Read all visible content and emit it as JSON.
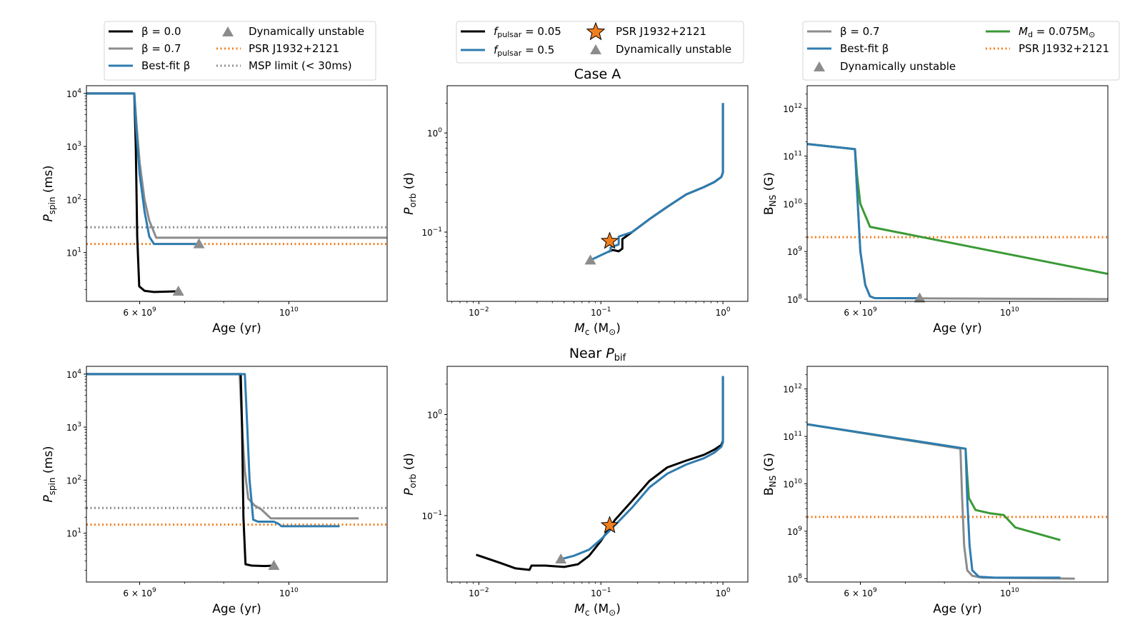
{
  "colors": {
    "black": "#000000",
    "gray": "#8c8c8c",
    "blue": "#2f7cb0",
    "orange": "#f07d1e",
    "green": "#3a9a36"
  },
  "legends": {
    "left": {
      "beta0": "β = 0.0",
      "beta07": "β = 0.7",
      "bestfit": "Best-fit β",
      "dyn": "Dynamically unstable",
      "psr": "PSR J1932+2121",
      "msp": "MSP limit (< 30ms)"
    },
    "mid": {
      "fp005_prefix": "f",
      "fp005_sub": "pulsar",
      "fp005_val": " = 0.05",
      "fp05_prefix": "f",
      "fp05_sub": "pulsar",
      "fp05_val": " = 0.5",
      "psr": "PSR J1932+2121",
      "dyn": "Dynamically unstable"
    },
    "right": {
      "beta07": "β = 0.7",
      "bestfit": "Best-fit β",
      "dyn": "Dynamically unstable",
      "md_prefix": "M",
      "md_sub": "d",
      "md_val": " = 0.075M",
      "md_sun": "⊙",
      "psr": "PSR J1932+2121"
    }
  },
  "chart_data": [
    {
      "id": "spin_top",
      "type": "line",
      "title": "",
      "xlabel": "Age (yr)",
      "ylabel_main": "P",
      "ylabel_sub": "spin",
      "ylabel_unit": " (ms)",
      "xscale": "log",
      "yscale": "log",
      "xlim": [
        5000000000,
        14000000000
      ],
      "ylim": [
        1.2,
        14000
      ],
      "xticks": [
        {
          "v": 6000000000,
          "base": "6 × 10",
          "exp": "9"
        },
        {
          "v": 10000000000,
          "base": "10",
          "exp": "10"
        }
      ],
      "yticks": [
        {
          "v": 10,
          "base": "10",
          "exp": "1"
        },
        {
          "v": 100,
          "base": "10",
          "exp": "2"
        },
        {
          "v": 1000,
          "base": "10",
          "exp": "3"
        },
        {
          "v": 10000,
          "base": "10",
          "exp": "4"
        }
      ],
      "hlines": [
        {
          "name": "MSP limit",
          "y": 30,
          "color": "gray"
        },
        {
          "name": "PSR J1932+2121",
          "y": 14.5,
          "color": "orange"
        }
      ],
      "series": [
        {
          "name": "β = 0.7",
          "color": "gray",
          "x": [
            5000000000,
            5890000000,
            5930000000,
            6000000000,
            6100000000,
            6200000000,
            6350000000,
            14000000000
          ],
          "y": [
            10000,
            10000,
            3000,
            500,
            100,
            40,
            19,
            19
          ]
        },
        {
          "name": "β = 0.0",
          "color": "black",
          "x": [
            5000000000,
            5890000000,
            5920000000,
            5950000000,
            5990000000,
            6100000000,
            6300000000,
            6800000000
          ],
          "y": [
            10000,
            10000,
            1000,
            20,
            2.3,
            1.9,
            1.8,
            1.85
          ]
        },
        {
          "name": "Best-fit β",
          "color": "blue",
          "x": [
            5000000000,
            5890000000,
            5930000000,
            6000000000,
            6100000000,
            6200000000,
            6300000000,
            7350000000
          ],
          "y": [
            10000,
            10000,
            2000,
            300,
            60,
            20,
            14.5,
            14.5
          ]
        }
      ],
      "markers": [
        {
          "name": "Dynamically unstable",
          "x": 6850000000,
          "y": 1.85,
          "color": "gray"
        },
        {
          "name": "Dynamically unstable",
          "x": 7350000000,
          "y": 14.5,
          "color": "gray"
        }
      ]
    },
    {
      "id": "porb_top",
      "type": "line",
      "title": "Case A",
      "xlabel_main": "M",
      "xlabel_sub": "c",
      "xlabel_unit": " (M",
      "xlabel_sun": "⊙",
      "xlabel_close": ")",
      "ylabel_main": "P",
      "ylabel_sub": "orb",
      "ylabel_unit": " (d)",
      "xscale": "log",
      "yscale": "log",
      "xlim": [
        0.0055,
        1.6
      ],
      "ylim": [
        0.02,
        3.0
      ],
      "xticks": [
        {
          "v": 0.01,
          "base": "10",
          "exp": "−2"
        },
        {
          "v": 0.1,
          "base": "10",
          "exp": "−1"
        },
        {
          "v": 1,
          "base": "10",
          "exp": "0"
        }
      ],
      "yticks": [
        {
          "v": 0.1,
          "base": "10",
          "exp": "−1"
        },
        {
          "v": 1,
          "base": "10",
          "exp": "0"
        }
      ],
      "series": [
        {
          "name": "f_pulsar = 0.05",
          "color": "black",
          "x": [
            1.0,
            1.0,
            0.97,
            0.85,
            0.7,
            0.5,
            0.35,
            0.25,
            0.18,
            0.15,
            0.15,
            0.14,
            0.125,
            0.115
          ],
          "y": [
            2.0,
            0.4,
            0.36,
            0.32,
            0.285,
            0.24,
            0.18,
            0.135,
            0.1,
            0.085,
            0.068,
            0.064,
            0.066,
            0.063
          ]
        },
        {
          "name": "f_pulsar = 0.5",
          "color": "blue",
          "x": [
            1.0,
            1.0,
            0.97,
            0.85,
            0.7,
            0.5,
            0.35,
            0.25,
            0.18,
            0.14,
            0.14,
            0.12,
            0.12,
            0.082
          ],
          "y": [
            2.0,
            0.4,
            0.36,
            0.32,
            0.285,
            0.24,
            0.18,
            0.135,
            0.1,
            0.09,
            0.075,
            0.07,
            0.065,
            0.052
          ]
        }
      ],
      "markers": [
        {
          "name": "Dynamically unstable",
          "x": 0.082,
          "y": 0.052,
          "color": "gray"
        }
      ],
      "stars": [
        {
          "name": "PSR J1932+2121",
          "x": 0.118,
          "y": 0.081
        }
      ]
    },
    {
      "id": "bns_top",
      "type": "line",
      "title": "",
      "xlabel": "Age (yr)",
      "ylabel_main": "B",
      "ylabel_sub": "NS",
      "ylabel_unit": " (G)",
      "xscale": "log",
      "yscale": "log",
      "xlim": [
        5000000000,
        14000000000
      ],
      "ylim": [
        90000000,
        3000000000000
      ],
      "xticks": [
        {
          "v": 6000000000,
          "base": "6 × 10",
          "exp": "9"
        },
        {
          "v": 10000000000,
          "base": "10",
          "exp": "10"
        }
      ],
      "yticks": [
        {
          "v": 100000000,
          "base": "10",
          "exp": "8"
        },
        {
          "v": 1000000000,
          "base": "10",
          "exp": "9"
        },
        {
          "v": 10000000000,
          "base": "10",
          "exp": "10"
        },
        {
          "v": 100000000000,
          "base": "10",
          "exp": "11"
        },
        {
          "v": 1000000000000,
          "base": "10",
          "exp": "12"
        }
      ],
      "hlines": [
        {
          "name": "PSR J1932+2121",
          "y": 2000000000,
          "color": "orange"
        }
      ],
      "series": [
        {
          "name": "β = 0.7",
          "color": "gray",
          "x": [
            5000000000,
            5890000000,
            5930000000,
            6000000000,
            6100000000,
            6200000000,
            6300000000,
            14000000000
          ],
          "y": [
            180000000000,
            140000000000,
            20000000000,
            1000000000,
            200000000,
            115000000,
            105000000,
            100000000
          ]
        },
        {
          "name": "M_d = 0.075M⊙",
          "color": "green",
          "x": [
            5000000000,
            5890000000,
            5930000000,
            6000000000,
            6200000000,
            14000000000
          ],
          "y": [
            180000000000,
            140000000000,
            40000000000,
            10000000000,
            3300000000,
            340000000
          ]
        },
        {
          "name": "Best-fit β",
          "color": "blue",
          "x": [
            5000000000,
            5890000000,
            5930000000,
            6000000000,
            6100000000,
            6200000000,
            6300000000,
            7350000000
          ],
          "y": [
            180000000000,
            140000000000,
            20000000000,
            1000000000,
            200000000,
            115000000,
            105000000,
            105000000
          ]
        }
      ],
      "markers": [
        {
          "name": "Dynamically unstable",
          "x": 7350000000,
          "y": 105000000,
          "color": "gray"
        }
      ]
    },
    {
      "id": "spin_bot",
      "type": "line",
      "title": "",
      "xlabel": "Age (yr)",
      "ylabel_main": "P",
      "ylabel_sub": "spin",
      "ylabel_unit": " (ms)",
      "xscale": "log",
      "yscale": "log",
      "xlim": [
        5000000000,
        14000000000
      ],
      "ylim": [
        1.2,
        14000
      ],
      "xticks": [
        {
          "v": 6000000000,
          "base": "6 × 10",
          "exp": "9"
        },
        {
          "v": 10000000000,
          "base": "10",
          "exp": "10"
        }
      ],
      "yticks": [
        {
          "v": 10,
          "base": "10",
          "exp": "1"
        },
        {
          "v": 100,
          "base": "10",
          "exp": "2"
        },
        {
          "v": 1000,
          "base": "10",
          "exp": "3"
        },
        {
          "v": 10000,
          "base": "10",
          "exp": "4"
        }
      ],
      "hlines": [
        {
          "name": "MSP limit",
          "y": 30,
          "color": "gray"
        },
        {
          "name": "PSR J1932+2121",
          "y": 14.5,
          "color": "orange"
        }
      ],
      "series": [
        {
          "name": "β = 0.7",
          "color": "gray",
          "x": [
            5000000000,
            8450000000,
            8520000000,
            8600000000,
            8700000000,
            8900000000,
            9100000000,
            9400000000,
            12700000000
          ],
          "y": [
            10000,
            10000,
            1000,
            150,
            45,
            33,
            28,
            19,
            19
          ]
        },
        {
          "name": "β = 0.0",
          "color": "black",
          "x": [
            5000000000,
            8480000000,
            8520000000,
            8560000000,
            8620000000,
            8800000000,
            9200000000,
            9500000000
          ],
          "y": [
            10000,
            10000,
            1000,
            20,
            2.6,
            2.45,
            2.4,
            2.45
          ]
        },
        {
          "name": "Best-fit β",
          "color": "blue",
          "x": [
            5000000000,
            8600000000,
            8660000000,
            8740000000,
            8850000000,
            9000000000,
            9500000000,
            9650000000,
            9750000000,
            11900000000
          ],
          "y": [
            10000,
            10000,
            1500,
            100,
            18,
            16.5,
            16.5,
            15,
            13.5,
            13.5
          ]
        }
      ],
      "markers": [
        {
          "name": "Dynamically unstable",
          "x": 9500000000,
          "y": 2.45,
          "color": "gray"
        }
      ]
    },
    {
      "id": "porb_bot",
      "type": "line",
      "title_prefix": "Near ",
      "title_main": "P",
      "title_sub": "bif",
      "xlabel_main": "M",
      "xlabel_sub": "c",
      "xlabel_unit": " (M",
      "xlabel_sun": "⊙",
      "xlabel_close": ")",
      "ylabel_main": "P",
      "ylabel_sub": "orb",
      "ylabel_unit": " (d)",
      "xscale": "log",
      "yscale": "log",
      "xlim": [
        0.0055,
        1.6
      ],
      "ylim": [
        0.022,
        3.0
      ],
      "xticks": [
        {
          "v": 0.01,
          "base": "10",
          "exp": "−2"
        },
        {
          "v": 0.1,
          "base": "10",
          "exp": "−1"
        },
        {
          "v": 1,
          "base": "10",
          "exp": "0"
        }
      ],
      "yticks": [
        {
          "v": 0.1,
          "base": "10",
          "exp": "−1"
        },
        {
          "v": 1,
          "base": "10",
          "exp": "0"
        }
      ],
      "series": [
        {
          "name": "f_pulsar = 0.05",
          "color": "black",
          "x": [
            1.0,
            1.0,
            0.97,
            0.85,
            0.7,
            0.5,
            0.35,
            0.25,
            0.18,
            0.13,
            0.1,
            0.08,
            0.065,
            0.05,
            0.035,
            0.027,
            0.026,
            0.02,
            0.015,
            0.0095
          ],
          "y": [
            2.4,
            0.55,
            0.5,
            0.45,
            0.4,
            0.35,
            0.3,
            0.22,
            0.14,
            0.09,
            0.056,
            0.04,
            0.033,
            0.031,
            0.032,
            0.032,
            0.029,
            0.03,
            0.034,
            0.041
          ]
        },
        {
          "name": "f_pulsar = 0.5",
          "color": "blue",
          "x": [
            1.0,
            1.0,
            0.97,
            0.85,
            0.7,
            0.5,
            0.35,
            0.25,
            0.18,
            0.13,
            0.1,
            0.08,
            0.06,
            0.047
          ],
          "y": [
            2.4,
            0.53,
            0.48,
            0.42,
            0.37,
            0.32,
            0.26,
            0.19,
            0.12,
            0.08,
            0.058,
            0.046,
            0.04,
            0.037
          ]
        }
      ],
      "markers": [
        {
          "name": "Dynamically unstable",
          "x": 0.047,
          "y": 0.037,
          "color": "gray"
        }
      ],
      "stars": [
        {
          "name": "PSR J1932+2121",
          "x": 0.118,
          "y": 0.08
        }
      ]
    },
    {
      "id": "bns_bot",
      "type": "line",
      "title": "",
      "xlabel": "Age (yr)",
      "ylabel_main": "B",
      "ylabel_sub": "NS",
      "ylabel_unit": " (G)",
      "xscale": "log",
      "yscale": "log",
      "xlim": [
        5000000000,
        14000000000
      ],
      "ylim": [
        85000000,
        3000000000000
      ],
      "xticks": [
        {
          "v": 6000000000,
          "base": "6 × 10",
          "exp": "9"
        },
        {
          "v": 10000000000,
          "base": "10",
          "exp": "10"
        }
      ],
      "yticks": [
        {
          "v": 100000000,
          "base": "10",
          "exp": "8"
        },
        {
          "v": 1000000000,
          "base": "10",
          "exp": "9"
        },
        {
          "v": 10000000000,
          "base": "10",
          "exp": "10"
        },
        {
          "v": 100000000000,
          "base": "10",
          "exp": "11"
        },
        {
          "v": 1000000000000,
          "base": "10",
          "exp": "12"
        }
      ],
      "hlines": [
        {
          "name": "PSR J1932+2121",
          "y": 2000000000,
          "color": "orange"
        }
      ],
      "series": [
        {
          "name": "β = 0.7",
          "color": "gray",
          "x": [
            5000000000,
            8450000000,
            8500000000,
            8560000000,
            8650000000,
            8800000000,
            9100000000,
            12500000000
          ],
          "y": [
            180000000000,
            55000000000,
            5000000000,
            500000000,
            150000000,
            115000000,
            105000000,
            100000000
          ]
        },
        {
          "name": "M_d = 0.075M⊙",
          "color": "green",
          "x": [
            5000000000,
            8600000000,
            8650000000,
            8700000000,
            8900000000,
            9350000000,
            9800000000,
            10200000000,
            11900000000
          ],
          "y": [
            180000000000,
            55000000000,
            15000000000,
            5000000000,
            2800000000,
            2400000000,
            2200000000,
            1200000000,
            650000000
          ]
        },
        {
          "name": "Best-fit β",
          "color": "blue",
          "x": [
            5000000000,
            8600000000,
            8650000000,
            8720000000,
            8800000000,
            9000000000,
            9500000000,
            11900000000
          ],
          "y": [
            180000000000,
            55000000000,
            5000000000,
            500000000,
            150000000,
            110000000,
            105000000,
            105000000
          ]
        }
      ]
    }
  ]
}
